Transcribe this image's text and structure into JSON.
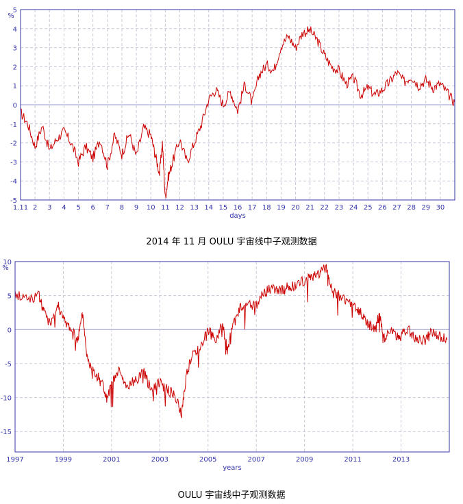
{
  "chart_data": [
    {
      "type": "line",
      "ylabel": "%",
      "xlabel": "days",
      "ylim": [
        -5,
        5
      ],
      "xlim": [
        1,
        31
      ],
      "grid": true,
      "yticks": [
        -5,
        -4,
        -3,
        -2,
        -1,
        0,
        1,
        2,
        3,
        4,
        5
      ],
      "xtick_labels": [
        "1.11",
        "2",
        "3",
        "4",
        "5",
        "6",
        "7",
        "8",
        "9",
        "10",
        "11",
        "12",
        "13",
        "14",
        "15",
        "16",
        "17",
        "18",
        "19",
        "20",
        "21",
        "22",
        "23",
        "24",
        "25",
        "26",
        "27",
        "28",
        "29",
        "30"
      ],
      "line_color": "#cc0000",
      "axis_color": "#3333aa",
      "series": [
        {
          "x": [
            1.0,
            1.5,
            2.0,
            2.5,
            3.0,
            3.5,
            4.0,
            4.5,
            5.0,
            5.5,
            6.0,
            6.5,
            7.0,
            7.5,
            8.0,
            8.5,
            9.0,
            9.5,
            10.0,
            10.3,
            10.6,
            10.8,
            11.0,
            11.2,
            11.5,
            12.0,
            12.5,
            13.0,
            13.5,
            14.0,
            14.5,
            15.0,
            15.5,
            16.0,
            16.5,
            17.0,
            17.5,
            18.0,
            18.5,
            19.0,
            19.5,
            20.0,
            20.5,
            21.0,
            21.5,
            22.0,
            22.5,
            23.0,
            23.5,
            24.0,
            24.5,
            25.0,
            25.5,
            26.0,
            26.5,
            27.0,
            27.5,
            28.0,
            28.5,
            29.0,
            29.5,
            30.0,
            30.5,
            31.0
          ],
          "y": [
            -0.4,
            -1.0,
            -2.2,
            -1.1,
            -2.4,
            -1.8,
            -1.4,
            -2.0,
            -3.0,
            -2.2,
            -2.8,
            -1.8,
            -3.2,
            -1.6,
            -2.6,
            -1.5,
            -2.7,
            -1.2,
            -1.6,
            -2.6,
            -3.6,
            -2.0,
            -4.9,
            -3.8,
            -3.0,
            -1.8,
            -3.0,
            -2.0,
            -1.0,
            0.3,
            0.8,
            0.0,
            0.7,
            -0.3,
            1.1,
            0.1,
            1.6,
            2.1,
            1.8,
            3.1,
            3.6,
            3.0,
            3.8,
            3.9,
            3.4,
            2.6,
            2.0,
            1.8,
            1.1,
            1.4,
            0.5,
            0.9,
            0.5,
            0.8,
            1.2,
            1.7,
            1.2,
            1.5,
            1.0,
            1.3,
            0.9,
            1.1,
            0.6,
            0.1
          ]
        }
      ]
    },
    {
      "type": "line",
      "ylabel": "%",
      "xlabel": "years",
      "ylim": [
        -18,
        10
      ],
      "xlim": [
        1997,
        2015
      ],
      "grid": true,
      "yticks": [
        -15,
        -10,
        -5,
        0,
        5,
        10
      ],
      "xtick_labels": [
        "1997",
        "1999",
        "2001",
        "2003",
        "2005",
        "2007",
        "2009",
        "2011",
        "2013"
      ],
      "xticks": [
        1997,
        1999,
        2001,
        2003,
        2005,
        2007,
        2009,
        2011,
        2013
      ],
      "line_color": "#cc0000",
      "axis_color": "#3333aa",
      "series": [
        {
          "x": [
            1997.0,
            1997.5,
            1998.0,
            1998.2,
            1998.5,
            1998.8,
            1999.0,
            1999.3,
            1999.6,
            1999.8,
            2000.0,
            2000.3,
            2000.6,
            2000.8,
            2001.0,
            2001.3,
            2001.6,
            2002.0,
            2002.3,
            2002.6,
            2003.0,
            2003.3,
            2003.6,
            2003.9,
            2004.1,
            2004.4,
            2004.7,
            2005.0,
            2005.3,
            2005.6,
            2005.8,
            2006.0,
            2006.3,
            2006.6,
            2007.0,
            2007.3,
            2007.6,
            2008.0,
            2008.3,
            2008.6,
            2009.0,
            2009.3,
            2009.6,
            2009.9,
            2010.1,
            2010.4,
            2010.7,
            2011.0,
            2011.3,
            2011.6,
            2011.9,
            2012.1,
            2012.3,
            2012.5,
            2012.8,
            2013.0,
            2013.3,
            2013.6,
            2014.0,
            2014.3,
            2014.6,
            2014.9
          ],
          "y": [
            5.2,
            4.6,
            4.9,
            2.5,
            1.2,
            3.6,
            1.4,
            0.2,
            -1.5,
            2.2,
            -4.5,
            -6.5,
            -7.5,
            -10.5,
            -8.2,
            -6.0,
            -8.5,
            -7.5,
            -6.0,
            -8.6,
            -7.6,
            -8.9,
            -9.5,
            -12.5,
            -6.5,
            -3.5,
            -2.5,
            0.0,
            -1.8,
            1.0,
            -3.0,
            0.2,
            3.0,
            3.6,
            3.5,
            5.2,
            6.1,
            5.7,
            6.2,
            6.5,
            7.2,
            7.8,
            8.5,
            9.0,
            6.0,
            5.0,
            4.3,
            3.6,
            2.5,
            0.9,
            0.1,
            2.0,
            -1.2,
            -0.1,
            -1.0,
            -0.9,
            0.0,
            -1.2,
            -1.6,
            -0.3,
            -1.0,
            -1.5
          ]
        }
      ]
    }
  ],
  "captions": {
    "chart1": "2014 年 11 月 OULU 宇宙线中子观测数据",
    "chart2": "OULU 宇宙线中子观测数据"
  }
}
